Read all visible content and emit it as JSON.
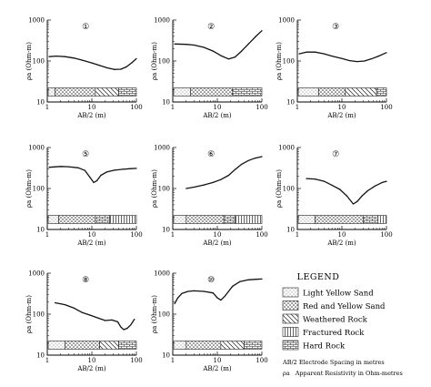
{
  "chart_data": {
    "type": "line",
    "xlabel": "AB/2 (m)",
    "ylabel": "ρa (Ohm-m)",
    "x_scale": "log",
    "y_scale": "log",
    "xlim": [
      1,
      100
    ],
    "ylim": [
      10,
      1000
    ],
    "x_ticks": [
      "1",
      "10",
      "100"
    ],
    "y_ticks": [
      "10",
      "100",
      "1000"
    ],
    "panels": [
      {
        "label": "①",
        "x": [
          1.1,
          1.6,
          2.5,
          4,
          6,
          10,
          15,
          22,
          32,
          45,
          60,
          80,
          100
        ],
        "y": [
          128,
          132,
          128,
          118,
          105,
          90,
          78,
          68,
          62,
          63,
          72,
          92,
          115
        ],
        "layers": [
          [
            "light_yellow_sand",
            1.05,
            1.5
          ],
          [
            "red_yellow_sand",
            1.5,
            12
          ],
          [
            "weathered_rock",
            12,
            40
          ],
          [
            "hard_rock",
            40,
            100
          ]
        ]
      },
      {
        "label": "②",
        "x": [
          1.1,
          2,
          3,
          5,
          8,
          12,
          18,
          25,
          35,
          50,
          70,
          100
        ],
        "y": [
          260,
          255,
          245,
          215,
          175,
          135,
          112,
          125,
          175,
          260,
          380,
          550
        ],
        "layers": [
          [
            "light_yellow_sand",
            1.05,
            2.5
          ],
          [
            "red_yellow_sand",
            2.5,
            22
          ],
          [
            "hard_rock",
            22,
            100
          ]
        ]
      },
      {
        "label": "③",
        "x": [
          1.1,
          1.6,
          2.5,
          4,
          6,
          10,
          15,
          22,
          32,
          45,
          65,
          100
        ],
        "y": [
          150,
          165,
          165,
          150,
          132,
          115,
          102,
          97,
          100,
          112,
          130,
          160
        ],
        "layers": [
          [
            "light_yellow_sand",
            1.05,
            3
          ],
          [
            "red_yellow_sand",
            3,
            12
          ],
          [
            "weathered_rock",
            12,
            60
          ],
          [
            "hard_rock",
            60,
            100
          ]
        ]
      },
      {
        "label": "⑤",
        "x": [
          1.1,
          2,
          3,
          5,
          7,
          9,
          11,
          13,
          16,
          22,
          32,
          50,
          75,
          100
        ],
        "y": [
          330,
          345,
          340,
          320,
          275,
          190,
          140,
          155,
          210,
          255,
          280,
          295,
          305,
          310
        ],
        "layers": [
          [
            "light_yellow_sand",
            1.05,
            1.8
          ],
          [
            "red_yellow_sand",
            1.8,
            12
          ],
          [
            "hard_rock",
            12,
            25
          ],
          [
            "fractured_rock",
            25,
            100
          ]
        ]
      },
      {
        "label": "⑥",
        "x": [
          2,
          3,
          5,
          8,
          12,
          18,
          25,
          35,
          50,
          70,
          100
        ],
        "y": [
          100,
          108,
          122,
          140,
          165,
          210,
          290,
          390,
          480,
          550,
          600
        ],
        "layers": [
          [
            "light_yellow_sand",
            1.05,
            2
          ],
          [
            "red_yellow_sand",
            2,
            14
          ],
          [
            "hard_rock",
            14,
            25
          ],
          [
            "fractured_rock",
            25,
            100
          ]
        ]
      },
      {
        "label": "⑦",
        "x": [
          1.6,
          2.5,
          4,
          6,
          9,
          13,
          18,
          22,
          28,
          38,
          55,
          80,
          100
        ],
        "y": [
          175,
          170,
          150,
          120,
          95,
          65,
          42,
          48,
          65,
          88,
          115,
          140,
          150
        ],
        "layers": [
          [
            "light_yellow_sand",
            1.05,
            2.5
          ],
          [
            "red_yellow_sand",
            2.5,
            30
          ],
          [
            "hard_rock",
            30,
            65
          ],
          [
            "fractured_rock",
            65,
            100
          ]
        ]
      },
      {
        "label": "⑧",
        "x": [
          1.5,
          2.5,
          4,
          6,
          9,
          14,
          20,
          28,
          38,
          45,
          52,
          62,
          75,
          90
        ],
        "y": [
          190,
          170,
          140,
          110,
          95,
          80,
          70,
          72,
          65,
          48,
          42,
          45,
          55,
          75
        ],
        "layers": [
          [
            "light_yellow_sand",
            1.05,
            2.5
          ],
          [
            "red_yellow_sand",
            2.5,
            15
          ],
          [
            "weathered_rock",
            15,
            40
          ],
          [
            "hard_rock",
            40,
            100
          ]
        ]
      },
      {
        "label": "⑩",
        "x": [
          1.1,
          1.3,
          1.6,
          2.2,
          3,
          5,
          8,
          10,
          12,
          15,
          22,
          32,
          50,
          75,
          100
        ],
        "y": [
          180,
          250,
          320,
          360,
          370,
          360,
          330,
          250,
          220,
          280,
          480,
          620,
          690,
          710,
          720
        ],
        "layers": [
          [
            "light_yellow_sand",
            1.05,
            2
          ],
          [
            "red_yellow_sand",
            2,
            12
          ],
          [
            "weathered_rock",
            12,
            40
          ],
          [
            "hard_rock",
            40,
            100
          ]
        ]
      }
    ]
  },
  "legend": {
    "title": "LEGEND",
    "items": [
      {
        "key": "light_yellow_sand",
        "label": "Light Yellow Sand"
      },
      {
        "key": "red_yellow_sand",
        "label": "Red and Yellow Sand"
      },
      {
        "key": "weathered_rock",
        "label": "Weathered Rock"
      },
      {
        "key": "fractured_rock",
        "label": "Fractured Rock"
      },
      {
        "key": "hard_rock",
        "label": "Hard Rock"
      }
    ],
    "note1": "AB/2  Electrode Spacing in metres",
    "note2_symbol": "ρa",
    "note2_text": "Apparent Resistivity in Ohm-metres"
  }
}
